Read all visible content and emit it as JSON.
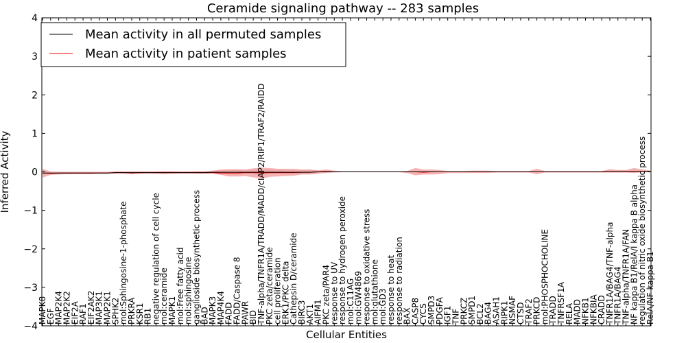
{
  "chart_data": {
    "type": "line",
    "title": "Ceramide signaling pathway -- 283 samples",
    "xlabel": "Cellular Entities",
    "ylabel": "Inferred Activity",
    "ylim": [
      -4,
      4
    ],
    "yticks": [
      "−4",
      "−3",
      "−2",
      "−1",
      "0",
      "1",
      "2",
      "3",
      "4"
    ],
    "grid": false,
    "legend_position": "top-left",
    "colors": {
      "permuted": "#000000",
      "patient": "#ff0000",
      "patient_band": "#f08080",
      "permuted_band": "#c8c8c8"
    },
    "categories": [
      "MAPK8",
      "EGF",
      "MAP2K4",
      "MAP2K2",
      "EIF2A",
      "RAF1",
      "EIF2AK2",
      "MAP3K1",
      "MAP2K1",
      "SPHK2",
      "mol:Sphingosine-1-phosphate",
      "PRKRA",
      "KSR1",
      "RB1",
      "negative regulation of cell cycle",
      "mol:ceramide",
      "MAPK1",
      "mol:Free fatty acid",
      "mol:sphingosine",
      "ganglioside biosynthetic process",
      "BAD",
      "MAPK3",
      "MAP4K4",
      "FADD",
      "FADD/Caspase 8",
      "PAWR",
      "BID",
      "TNF-alpha/TNFR1A/TRADD/MADD/cIAP2/RIP1/TRAF2/RAIDD",
      "PKC zeta/ceramide",
      "cell proliferation",
      "ERK1/PKC delta",
      "Cathepsin D/ceramide",
      "BIRC3",
      "AKT1",
      "AIFM1",
      "PKC zeta/PAR4",
      "response to UV",
      "response to hydrogen peroxide",
      "mol:C11AG",
      "mol:GW4869",
      "response to oxidative stress",
      "mol:glutathione",
      "mol:GD3",
      "response to heat",
      "response to radiation",
      "BAX",
      "CASP8",
      "CYCS",
      "SMPD3",
      "PDGFA",
      "IGF1",
      "TNF",
      "PRKCZ",
      "SMPD1",
      "BCL2",
      "BAG4",
      "ASAH1",
      "RIPK1",
      "NSMAF",
      "CTSD",
      "TRAF2",
      "PRKCD",
      "mol:PHOSPHOCHOLINE",
      "TRADD",
      "TNFRSF1A",
      "RELA",
      "MADD",
      "NFKB1",
      "NFKBIA",
      "CRADD",
      "TNFR1A/BAG4/TNF-alpha",
      "TNFR1A/BAG4",
      "TNF-alpha/TNFR1A/FAN",
      "NF kappa B1/RelA/I kappa B alpha",
      "regulation of nitric oxide biosynthetic process",
      "RelA/NF kappa B1"
    ],
    "series": [
      {
        "name": "Mean activity in all permuted samples",
        "values": [
          -0.03,
          -0.03,
          -0.03,
          -0.03,
          -0.03,
          -0.03,
          -0.03,
          -0.03,
          -0.03,
          -0.02,
          -0.02,
          -0.02,
          -0.02,
          -0.02,
          -0.02,
          -0.02,
          -0.02,
          -0.02,
          -0.02,
          -0.02,
          -0.02,
          -0.01,
          -0.01,
          -0.01,
          -0.01,
          -0.01,
          -0.01,
          -0.01,
          -0.01,
          -0.01,
          -0.01,
          -0.01,
          -0.01,
          -0.01,
          0.0,
          0.0,
          0.0,
          0.0,
          0.0,
          0.0,
          0.0,
          0.0,
          0.0,
          0.0,
          0.0,
          0.0,
          0.0,
          0.0,
          0.0,
          0.0,
          0.0,
          0.0,
          0.0,
          0.0,
          0.0,
          0.0,
          0.0,
          0.0,
          0.0,
          0.0,
          0.0,
          0.0,
          0.0,
          0.0,
          0.0,
          0.0,
          0.0,
          0.0,
          0.0,
          0.0,
          0.01,
          0.01,
          0.01,
          0.01,
          0.01,
          0.01
        ],
        "lower": [
          -0.06,
          -0.06,
          -0.06,
          -0.06,
          -0.05,
          -0.05,
          -0.05,
          -0.05,
          -0.05,
          -0.05,
          -0.05,
          -0.05,
          -0.05,
          -0.05,
          -0.05,
          -0.05,
          -0.05,
          -0.05,
          -0.05,
          -0.05,
          -0.05,
          -0.05,
          -0.06,
          -0.07,
          -0.07,
          -0.06,
          -0.06,
          -0.07,
          -0.06,
          -0.06,
          -0.06,
          -0.05,
          -0.06,
          -0.04,
          -0.03,
          -0.04,
          -0.02,
          -0.01,
          -0.01,
          -0.01,
          -0.01,
          -0.01,
          -0.01,
          -0.01,
          -0.01,
          -0.02,
          -0.02,
          -0.02,
          -0.02,
          -0.01,
          -0.01,
          -0.01,
          -0.01,
          -0.01,
          -0.01,
          -0.01,
          -0.01,
          -0.01,
          -0.01,
          -0.01,
          -0.01,
          -0.01,
          -0.01,
          -0.01,
          -0.01,
          -0.01,
          -0.01,
          -0.01,
          -0.01,
          -0.01,
          -0.01,
          -0.01,
          -0.01,
          -0.01,
          -0.01,
          -0.01
        ],
        "upper": [
          0.0,
          0.0,
          0.0,
          0.0,
          0.0,
          0.0,
          0.0,
          0.0,
          0.0,
          0.01,
          0.01,
          0.01,
          0.01,
          0.01,
          0.01,
          0.01,
          0.01,
          0.01,
          0.01,
          0.01,
          0.01,
          0.02,
          0.03,
          0.04,
          0.05,
          0.04,
          0.05,
          0.06,
          0.06,
          0.05,
          0.04,
          0.04,
          0.04,
          0.05,
          0.03,
          0.02,
          0.02,
          0.01,
          0.01,
          0.01,
          0.01,
          0.01,
          0.01,
          0.01,
          0.01,
          0.02,
          0.02,
          0.02,
          0.02,
          0.01,
          0.01,
          0.01,
          0.01,
          0.01,
          0.01,
          0.01,
          0.01,
          0.01,
          0.01,
          0.01,
          0.01,
          0.01,
          0.01,
          0.01,
          0.01,
          0.01,
          0.01,
          0.01,
          0.01,
          0.01,
          0.02,
          0.02,
          0.02,
          0.02,
          0.02,
          0.02
        ]
      },
      {
        "name": "Mean activity in patient samples",
        "values": [
          -0.03,
          -0.04,
          -0.03,
          -0.03,
          -0.03,
          -0.03,
          -0.03,
          -0.03,
          -0.03,
          -0.02,
          -0.02,
          -0.03,
          -0.02,
          -0.02,
          -0.02,
          -0.02,
          -0.02,
          -0.02,
          -0.02,
          -0.02,
          -0.02,
          -0.02,
          -0.03,
          -0.03,
          -0.03,
          -0.02,
          -0.02,
          -0.03,
          -0.02,
          -0.02,
          -0.02,
          -0.02,
          -0.01,
          -0.01,
          0.0,
          0.01,
          0.0,
          0.0,
          0.0,
          0.0,
          0.0,
          0.0,
          0.0,
          0.0,
          0.0,
          0.0,
          0.0,
          -0.01,
          0.0,
          0.0,
          0.0,
          0.0,
          0.0,
          0.0,
          0.0,
          0.0,
          0.0,
          0.0,
          0.0,
          0.0,
          0.0,
          0.0,
          0.0,
          0.0,
          0.0,
          0.0,
          0.0,
          0.0,
          0.0,
          0.0,
          0.01,
          0.01,
          0.01,
          0.01,
          0.01,
          0.01
        ],
        "lower": [
          -0.15,
          -0.08,
          -0.07,
          -0.06,
          -0.06,
          -0.06,
          -0.06,
          -0.05,
          -0.05,
          -0.04,
          -0.04,
          -0.06,
          -0.05,
          -0.04,
          -0.05,
          -0.06,
          -0.05,
          -0.04,
          -0.04,
          -0.05,
          -0.05,
          -0.05,
          -0.08,
          -0.12,
          -0.12,
          -0.11,
          -0.14,
          -0.18,
          -0.13,
          -0.12,
          -0.11,
          -0.1,
          -0.07,
          -0.07,
          -0.05,
          -0.02,
          -0.01,
          -0.01,
          -0.01,
          -0.01,
          -0.01,
          -0.01,
          -0.01,
          -0.01,
          -0.01,
          -0.03,
          -0.09,
          -0.07,
          -0.07,
          -0.06,
          -0.03,
          -0.03,
          -0.03,
          -0.03,
          -0.03,
          -0.03,
          -0.02,
          -0.02,
          -0.02,
          -0.02,
          -0.02,
          -0.06,
          -0.02,
          -0.02,
          -0.02,
          -0.02,
          -0.02,
          -0.02,
          -0.02,
          -0.02,
          -0.02,
          -0.02,
          -0.02,
          -0.03,
          -0.01,
          -0.01
        ],
        "upper": [
          0.08,
          0.01,
          0.0,
          0.0,
          0.0,
          0.0,
          0.0,
          0.0,
          0.0,
          0.01,
          0.01,
          0.01,
          0.01,
          0.01,
          0.01,
          0.02,
          0.02,
          0.01,
          0.01,
          0.02,
          0.02,
          0.03,
          0.06,
          0.07,
          0.07,
          0.06,
          0.09,
          0.11,
          0.1,
          0.08,
          0.08,
          0.08,
          0.06,
          0.06,
          0.04,
          0.06,
          0.03,
          0.01,
          0.01,
          0.01,
          0.01,
          0.01,
          0.01,
          0.01,
          0.01,
          0.02,
          0.1,
          0.06,
          0.06,
          0.05,
          0.02,
          0.02,
          0.02,
          0.03,
          0.03,
          0.03,
          0.02,
          0.02,
          0.02,
          0.02,
          0.02,
          0.08,
          0.02,
          0.02,
          0.02,
          0.02,
          0.02,
          0.02,
          0.02,
          0.02,
          0.07,
          0.05,
          0.05,
          0.1,
          0.06,
          0.03
        ]
      }
    ]
  }
}
